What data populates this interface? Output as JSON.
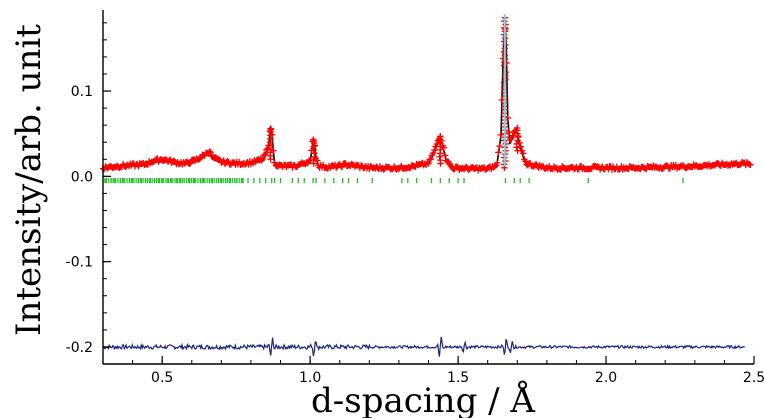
{
  "chart_data": {
    "type": "line",
    "title": "",
    "xlabel": "d-spacing / Å",
    "ylabel": "Intensity/arb. unit",
    "xlim": [
      0.3,
      2.5
    ],
    "ylim": [
      -0.22,
      0.195
    ],
    "x_ticks": [
      0.5,
      1.0,
      1.5,
      2.0,
      2.5
    ],
    "x_tick_labels": [
      "0.5",
      "1.0",
      "1.5",
      "2.0",
      "2.5"
    ],
    "y_ticks": [
      0.1,
      0.0,
      -0.1,
      -0.2
    ],
    "y_tick_labels": [
      "0.1",
      "0.0",
      "-0.1",
      "-0.2"
    ],
    "grid": false,
    "legend": "none",
    "series": [
      {
        "role": "observed",
        "marker": "+",
        "color": "#ff0000",
        "x": [
          0.3,
          0.35,
          0.4,
          0.44,
          0.47,
          0.5,
          0.55,
          0.58,
          0.62,
          0.65,
          0.66,
          0.67,
          0.7,
          0.75,
          0.8,
          0.84,
          0.86,
          0.865,
          0.87,
          0.875,
          0.88,
          0.9,
          0.95,
          1.0,
          1.01,
          1.015,
          1.02,
          1.03,
          1.06,
          1.1,
          1.12,
          1.2,
          1.3,
          1.35,
          1.4,
          1.42,
          1.435,
          1.44,
          1.45,
          1.46,
          1.48,
          1.55,
          1.6,
          1.63,
          1.645,
          1.652,
          1.658,
          1.663,
          1.668,
          1.675,
          1.69,
          1.7,
          1.71,
          1.73,
          1.8,
          1.9,
          2.0,
          2.1,
          2.2,
          2.3,
          2.4,
          2.46,
          2.49
        ],
        "y": [
          0.01,
          0.012,
          0.013,
          0.014,
          0.018,
          0.02,
          0.016,
          0.015,
          0.02,
          0.027,
          0.03,
          0.022,
          0.017,
          0.015,
          0.016,
          0.02,
          0.035,
          0.06,
          0.055,
          0.035,
          0.015,
          0.012,
          0.012,
          0.018,
          0.045,
          0.04,
          0.022,
          0.012,
          0.011,
          0.012,
          0.014,
          0.01,
          0.01,
          0.012,
          0.015,
          0.03,
          0.045,
          0.048,
          0.035,
          0.02,
          0.01,
          0.009,
          0.009,
          0.012,
          0.05,
          0.14,
          0.19,
          0.15,
          0.07,
          0.04,
          0.052,
          0.055,
          0.035,
          0.015,
          0.01,
          0.01,
          0.01,
          0.01,
          0.011,
          0.012,
          0.014,
          0.015,
          0.014
        ]
      },
      {
        "role": "calculated",
        "color": "#000000",
        "x": [
          0.3,
          0.35,
          0.4,
          0.44,
          0.47,
          0.5,
          0.55,
          0.58,
          0.62,
          0.65,
          0.66,
          0.67,
          0.7,
          0.75,
          0.8,
          0.84,
          0.86,
          0.865,
          0.87,
          0.875,
          0.88,
          0.9,
          0.95,
          1.0,
          1.01,
          1.015,
          1.02,
          1.03,
          1.06,
          1.1,
          1.12,
          1.2,
          1.3,
          1.35,
          1.4,
          1.42,
          1.435,
          1.44,
          1.45,
          1.46,
          1.48,
          1.55,
          1.6,
          1.63,
          1.645,
          1.652,
          1.658,
          1.663,
          1.668,
          1.675,
          1.69,
          1.7,
          1.71,
          1.73,
          1.8,
          1.9,
          2.0,
          2.1,
          2.2,
          2.3,
          2.4,
          2.46,
          2.49
        ],
        "y": [
          0.01,
          0.011,
          0.012,
          0.013,
          0.016,
          0.018,
          0.015,
          0.014,
          0.018,
          0.025,
          0.028,
          0.02,
          0.016,
          0.014,
          0.015,
          0.018,
          0.033,
          0.058,
          0.053,
          0.033,
          0.014,
          0.011,
          0.011,
          0.016,
          0.043,
          0.038,
          0.02,
          0.011,
          0.01,
          0.011,
          0.013,
          0.009,
          0.009,
          0.011,
          0.014,
          0.028,
          0.043,
          0.046,
          0.033,
          0.018,
          0.009,
          0.008,
          0.008,
          0.011,
          0.048,
          0.138,
          0.185,
          0.148,
          0.068,
          0.038,
          0.05,
          0.052,
          0.033,
          0.013,
          0.009,
          0.009,
          0.009,
          0.009,
          0.01,
          0.011,
          0.013,
          0.014,
          0.013
        ]
      },
      {
        "role": "difference",
        "color": "#1a237e",
        "baseline": -0.2,
        "x_range": [
          0.3,
          2.47
        ],
        "features": [
          {
            "x": 0.87,
            "amp": 0.012
          },
          {
            "x": 1.015,
            "amp": 0.012
          },
          {
            "x": 1.44,
            "amp": 0.014
          },
          {
            "x": 1.52,
            "amp": 0.006
          },
          {
            "x": 1.66,
            "amp": 0.012
          },
          {
            "x": 1.68,
            "amp": 0.01
          }
        ]
      },
      {
        "role": "reflection-ticks",
        "color": "#22bb22",
        "y_top": -0.002,
        "y_bottom": -0.008,
        "x": [
          0.31,
          0.33,
          0.34,
          0.36,
          0.37,
          0.39,
          0.4,
          0.42,
          0.43,
          0.45,
          0.46,
          0.48,
          0.49,
          0.5,
          0.52,
          0.53,
          0.55,
          0.56,
          0.57,
          0.59,
          0.6,
          0.61,
          0.63,
          0.64,
          0.66,
          0.67,
          0.69,
          0.7,
          0.72,
          0.73,
          0.75,
          0.77,
          0.79,
          0.81,
          0.83,
          0.85,
          0.87,
          0.88,
          0.9,
          0.94,
          0.96,
          0.98,
          1.01,
          1.02,
          1.05,
          1.08,
          1.11,
          1.13,
          1.16,
          1.21,
          1.31,
          1.33,
          1.36,
          1.41,
          1.44,
          1.47,
          1.5,
          1.52,
          1.66,
          1.69,
          1.71,
          1.74,
          1.94,
          2.26
        ]
      }
    ]
  }
}
